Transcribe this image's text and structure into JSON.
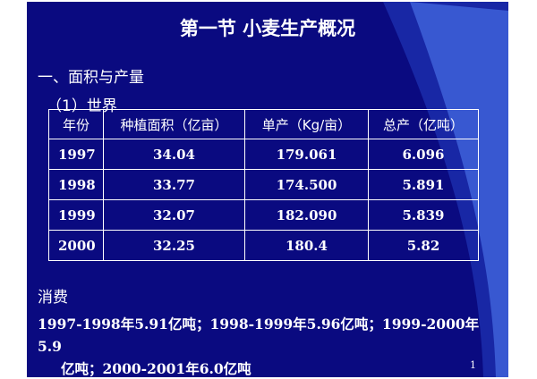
{
  "title": "第一节  小麦生产概况",
  "section_heading": "一、面积与产量",
  "subsection_heading": "（1）世界",
  "table": {
    "headers": [
      "年份",
      "种植面积（亿亩）",
      "单产（Kg/亩）",
      "总产（亿吨）"
    ],
    "rows": [
      [
        "1997",
        "34.04",
        "179.061",
        "6.096"
      ],
      [
        "1998",
        "33.77",
        "174.500",
        "5.891"
      ],
      [
        "1999",
        "32.07",
        "182.090",
        "5.839"
      ],
      [
        "2000",
        "32.25",
        "180.4",
        "5.82"
      ]
    ]
  },
  "consumption_heading": "消费",
  "consumption_line1": "1997-1998年5.91亿吨；1998-1999年5.96亿吨；1999-2000年5.9",
  "consumption_line2": "亿吨；2000-2001年6.0亿吨",
  "page_number": "1",
  "colors": {
    "background": "#0a0a80",
    "swoosh_light": "#3e62d8",
    "swoosh_dark": "#1a2aa8",
    "text": "#ffffff"
  }
}
